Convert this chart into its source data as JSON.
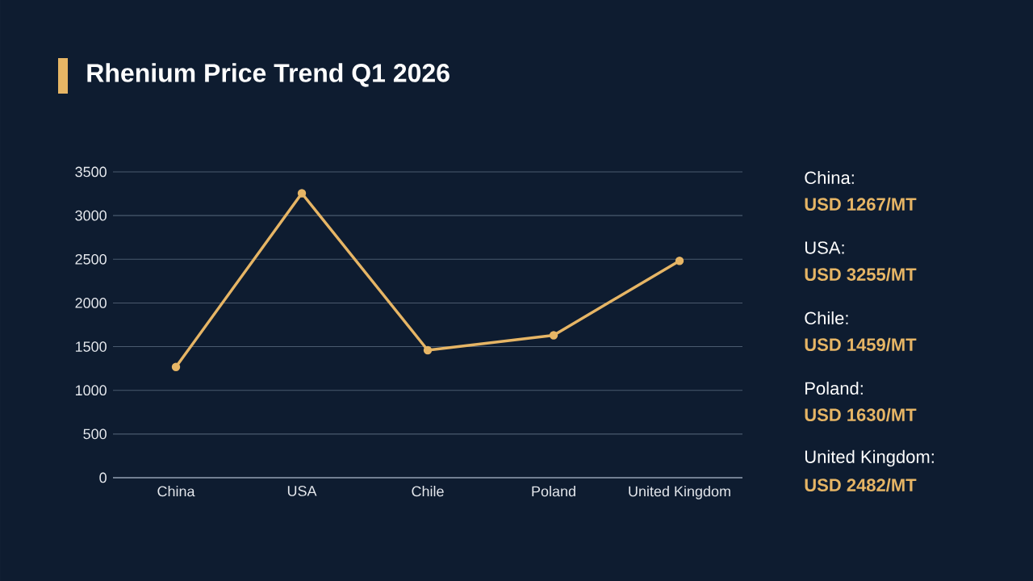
{
  "chart_data": {
    "type": "line",
    "title": "Rhenium Price Trend Q1 2026",
    "categories": [
      "China",
      "USA",
      "Chile",
      "Poland",
      "United Kingdom"
    ],
    "series": [
      {
        "color": "#e6b565",
        "values": [
          1267,
          3255,
          1459,
          1630,
          2482
        ]
      }
    ],
    "ylim": [
      0,
      3500
    ],
    "yticks": [
      0,
      500,
      1000,
      1500,
      2000,
      2500,
      3000,
      3500
    ],
    "grid": "y",
    "marker": "circle",
    "line_style": "solid",
    "annotations": [
      "China:",
      "USD 1267/MT",
      "USA:",
      "USD 3255/MT",
      "Chile:",
      "USD 1459/MT",
      "Poland:",
      "USD 1630/MT",
      "United Kingdom:",
      "USD 2482/MT"
    ]
  }
}
